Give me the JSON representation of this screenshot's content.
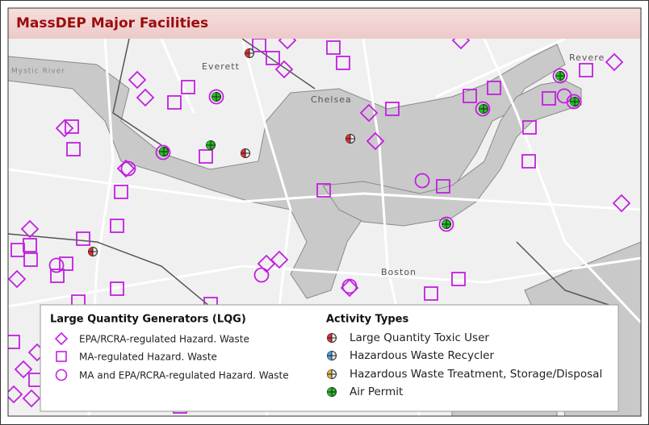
{
  "header": {
    "title": "MassDEP Major Facilities"
  },
  "map": {
    "labels": [
      "Everett",
      "Chelsea",
      "Revere",
      "Boston",
      "Mystic River"
    ]
  },
  "legend": {
    "lqg": {
      "title": "Large Quantity Generators (LQG)",
      "items": [
        "EPA/RCRA-regulated Hazard. Waste",
        "MA-regulated Hazard. Waste",
        "MA and EPA/RCRA-regulated Hazard. Waste"
      ]
    },
    "activity": {
      "title": "Activity Types",
      "items": [
        "Large Quantity Toxic User",
        "Hazardous Waste Recycler",
        "Hazardous Waste Treatment, Storage/Disposal",
        "Air Permit"
      ]
    }
  }
}
